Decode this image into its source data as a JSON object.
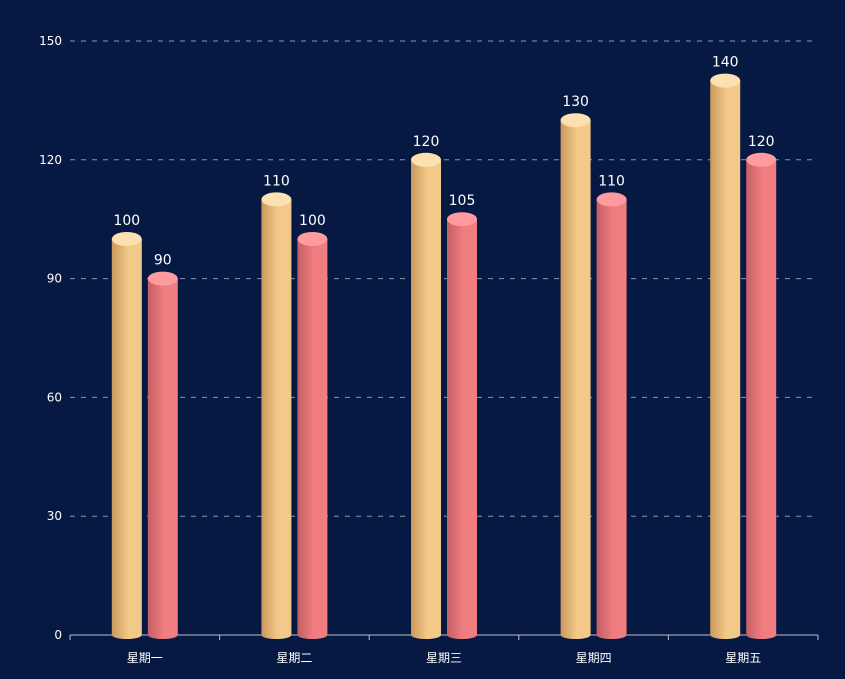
{
  "chart_data": {
    "type": "bar",
    "categories": [
      "星期一",
      "星期二",
      "星期三",
      "星期四",
      "星期五"
    ],
    "series": [
      {
        "values": [
          100,
          110,
          120,
          130,
          140
        ],
        "color_top": "#fde0b0",
        "color_light": "#f3c989",
        "color_dark": "#c9995a"
      },
      {
        "values": [
          90,
          100,
          105,
          110,
          120
        ],
        "color_top": "#ff9a9e",
        "color_light": "#f07d80",
        "color_dark": "#c45f65"
      }
    ],
    "y_ticks": [
      "0",
      "30",
      "60",
      "90",
      "120",
      "150"
    ],
    "ylim": [
      0,
      150
    ],
    "grid": true,
    "legend": "none",
    "colors": {
      "background": "#061943",
      "axis_text": "#ffffff",
      "label_text": "#ffffff",
      "grid": "#8a93ad",
      "axis_line": "#b8bfd1"
    }
  }
}
